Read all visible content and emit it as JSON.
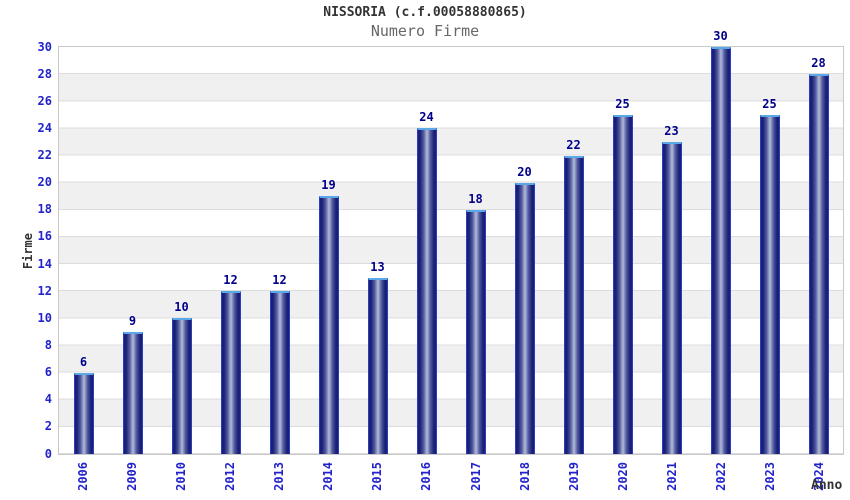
{
  "chart_data": {
    "type": "bar",
    "title": "NISSORIA (c.f.00058880865)",
    "subtitle": "Numero Firme",
    "xlabel": "Anno",
    "ylabel": "Firme",
    "categories": [
      "2006",
      "2009",
      "2010",
      "2012",
      "2013",
      "2014",
      "2015",
      "2016",
      "2017",
      "2018",
      "2019",
      "2020",
      "2021",
      "2022",
      "2023",
      "2024"
    ],
    "values": [
      6,
      9,
      10,
      12,
      12,
      19,
      13,
      24,
      18,
      20,
      22,
      25,
      23,
      30,
      25,
      28
    ],
    "ylim": [
      0,
      30
    ],
    "yticks": [
      0,
      2,
      4,
      6,
      8,
      10,
      12,
      14,
      16,
      18,
      20,
      22,
      24,
      26,
      28,
      30
    ],
    "grid": "horizontal-bands",
    "legend": "none",
    "colors": {
      "tick_label_blue": "#2323cb",
      "value_label_navy": "#00008b",
      "title": "#333333",
      "subtitle": "#686868",
      "axis_label": "#333333",
      "band_gray": "#f0f0f0",
      "gridline": "#dcdcdc",
      "plot_border": "#c9c9c9",
      "bar_edge_blue": "#2a3cc6",
      "bar_dark_navy": "#1b2077",
      "bar_mid": "#4d569c",
      "bar_center_light": "#b2bad8",
      "bar_top_cap_lightblue": "#5aa8e8"
    }
  }
}
